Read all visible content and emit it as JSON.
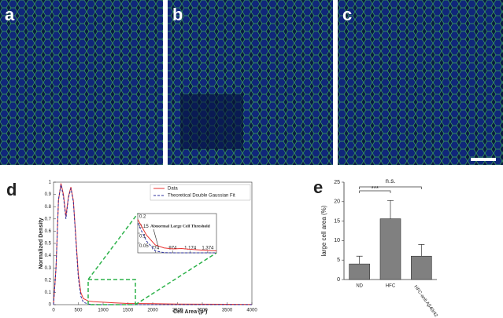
{
  "panel_labels": [
    "a",
    "b",
    "c",
    "d",
    "e"
  ],
  "chart_data": [
    {
      "type": "line",
      "xlabel": "Cell Area (μ²)",
      "ylabel": "Normalized Density",
      "x": [
        0,
        50,
        100,
        150,
        200,
        250,
        300,
        350,
        400,
        450,
        500,
        550,
        600,
        700,
        800,
        1000,
        1200,
        1500,
        2000,
        2500,
        3000,
        3500,
        4000
      ],
      "series": [
        {
          "name": "Data",
          "color": "#e8312f",
          "dash": false,
          "values": [
            0,
            0.3,
            0.85,
            0.99,
            0.9,
            0.72,
            0.88,
            0.96,
            0.85,
            0.55,
            0.25,
            0.1,
            0.05,
            0.03,
            0.025,
            0.02,
            0.015,
            0.01,
            0.008,
            0.005,
            0.004,
            0.003,
            0.002
          ]
        },
        {
          "name": "Theoretical Double Gaussian Fit",
          "color": "#2b2f9e",
          "dash": true,
          "values": [
            0,
            0.3,
            0.86,
            0.98,
            0.88,
            0.7,
            0.87,
            0.95,
            0.84,
            0.53,
            0.22,
            0.07,
            0.02,
            0.005,
            0.001,
            0,
            0,
            0,
            0,
            0,
            0,
            0,
            0
          ]
        }
      ],
      "xlim": [
        0,
        4000
      ],
      "xticks": [
        0,
        500,
        1000,
        1500,
        2000,
        2500,
        3000,
        3500,
        4000
      ],
      "ylim": [
        0,
        1
      ],
      "yticks": [
        0,
        0.1,
        0.2,
        0.3,
        0.4,
        0.5,
        0.6,
        0.7,
        0.8,
        0.9,
        1
      ],
      "legend": "upper right"
    },
    {
      "type": "line",
      "annotation": "Abnormal Large Cell Threshold",
      "x": [
        574,
        674,
        774,
        874,
        974,
        1074,
        1174,
        1274,
        1374,
        1474
      ],
      "series": [
        {
          "name": "Data",
          "color": "#e8312f",
          "dash": false,
          "values": [
            0.17,
            0.09,
            0.04,
            0.025,
            0.02,
            0.022,
            0.018,
            0.015,
            0.012,
            0.01
          ]
        },
        {
          "name": "Theoretical Double Gaussian Fit",
          "color": "#2b2f9e",
          "dash": true,
          "values": [
            0.15,
            0.06,
            0.01,
            0.001,
            0,
            0,
            0,
            0,
            0,
            0
          ]
        }
      ],
      "xlim": [
        574,
        1474
      ],
      "xticks": [
        774,
        974,
        {
          "value": 1174,
          "label": "1,174"
        },
        {
          "value": 1374,
          "label": "1,374"
        }
      ],
      "ylim": [
        0,
        0.2
      ],
      "yticks": [
        0.05,
        0.1,
        0.15,
        0.2
      ]
    },
    {
      "type": "bar",
      "ylabel": "large cell area (%)",
      "categories": [
        "ND",
        "HFC",
        "HFC-anti Aβ40/42"
      ],
      "values": [
        4,
        15.6,
        6
      ],
      "errors": [
        2,
        4.7,
        3
      ],
      "color": "#808080",
      "ylim": [
        0,
        25
      ],
      "yticks": [
        0,
        5,
        10,
        15,
        20,
        25
      ],
      "annotations": [
        "***",
        "n.s."
      ]
    }
  ]
}
